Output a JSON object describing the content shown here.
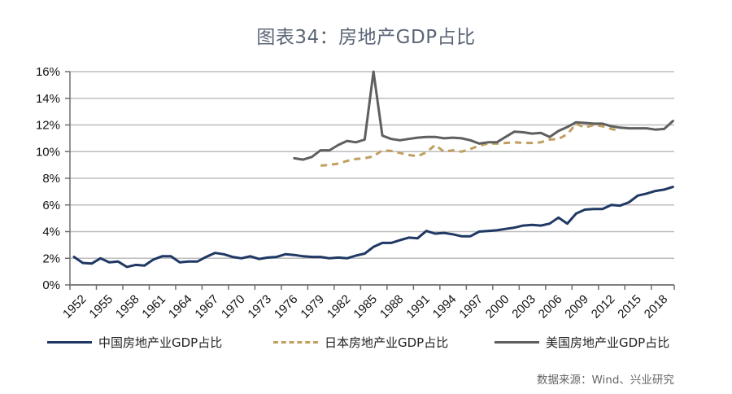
{
  "title": "图表34：房地产GDP占比",
  "source": "数据来源：Wind、兴业研究",
  "colors": {
    "china": "#1f3864",
    "japan": "#c0a060",
    "us": "#5f5f5f",
    "grid": "#bdbdbd",
    "axis": "#6e6e6e"
  },
  "chart_data": {
    "type": "line",
    "title": "图表34：房地产GDP占比",
    "xlabel": "",
    "ylabel": "",
    "ylim": [
      0,
      16
    ],
    "yticks": [
      "0%",
      "2%",
      "4%",
      "6%",
      "8%",
      "10%",
      "12%",
      "14%",
      "16%"
    ],
    "ytick_values": [
      0,
      2,
      4,
      6,
      8,
      10,
      12,
      14,
      16
    ],
    "xlim": [
      1952,
      2020
    ],
    "xticks": [
      "1952",
      "1955",
      "1958",
      "1961",
      "1964",
      "1967",
      "1970",
      "1973",
      "1976",
      "1979",
      "1982",
      "1985",
      "1988",
      "1991",
      "1994",
      "1997",
      "2000",
      "2003",
      "2006",
      "2009",
      "2012",
      "2015",
      "2018"
    ],
    "grid": true,
    "legend_position": "bottom",
    "series": [
      {
        "name": "中国房地产业GDP占比",
        "key": "china",
        "style": "solid",
        "start_year": 1952,
        "values": [
          2.1,
          1.65,
          1.6,
          2.0,
          1.7,
          1.75,
          1.35,
          1.5,
          1.45,
          1.9,
          2.15,
          2.15,
          1.7,
          1.75,
          1.75,
          2.1,
          2.4,
          2.3,
          2.1,
          2.0,
          2.15,
          1.95,
          2.05,
          2.1,
          2.3,
          2.25,
          2.15,
          2.1,
          2.1,
          2.0,
          2.05,
          2.0,
          2.2,
          2.35,
          2.85,
          3.15,
          3.15,
          3.35,
          3.55,
          3.5,
          4.05,
          3.85,
          3.9,
          3.8,
          3.65,
          3.65,
          4.0,
          4.05,
          4.1,
          4.2,
          4.3,
          4.45,
          4.5,
          4.45,
          4.6,
          5.05,
          4.6,
          5.35,
          5.65,
          5.7,
          5.7,
          6.0,
          5.95,
          6.2,
          6.7,
          6.85,
          7.05,
          7.15,
          7.35
        ]
      },
      {
        "name": "日本房地产业GDP占比",
        "key": "japan",
        "style": "dashed",
        "start_year": 1980,
        "values": [
          8.95,
          9.0,
          9.1,
          9.3,
          9.45,
          9.5,
          9.65,
          10.1,
          10.05,
          9.9,
          9.75,
          9.65,
          9.95,
          10.5,
          10.0,
          10.1,
          10.0,
          10.2,
          10.45,
          10.6,
          10.6,
          10.65,
          10.7,
          10.65,
          10.65,
          10.7,
          10.9,
          10.95,
          11.3,
          12.1,
          11.8,
          12.0,
          11.9,
          11.7,
          11.55
        ]
      },
      {
        "name": "美国房地产业GDP占比",
        "key": "us",
        "style": "solid",
        "start_year": 1977,
        "values": [
          9.5,
          9.4,
          9.6,
          10.1,
          10.1,
          10.5,
          10.8,
          10.7,
          10.9,
          16.0,
          11.2,
          10.95,
          10.85,
          10.95,
          11.05,
          11.1,
          11.1,
          11.0,
          11.05,
          11.0,
          10.85,
          10.6,
          10.7,
          10.7,
          11.1,
          11.5,
          11.45,
          11.35,
          11.4,
          11.1,
          11.55,
          11.85,
          12.2,
          12.15,
          12.1,
          12.1,
          11.9,
          11.8,
          11.75,
          11.75,
          11.75,
          11.65,
          11.7,
          12.3
        ]
      }
    ]
  },
  "legend": {
    "items": [
      {
        "label": "中国房地产业GDP占比",
        "key": "china",
        "style": "solid"
      },
      {
        "label": "日本房地产业GDP占比",
        "key": "japan",
        "style": "dashed"
      },
      {
        "label": "美国房地产业GDP占比",
        "key": "us",
        "style": "solid"
      }
    ]
  }
}
